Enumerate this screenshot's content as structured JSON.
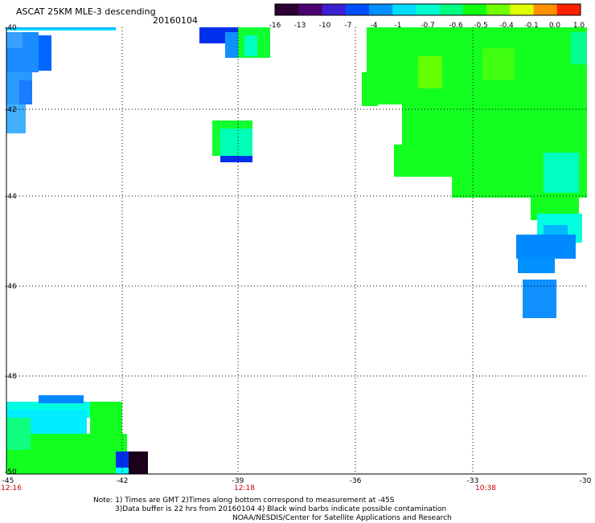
{
  "header": {
    "title": "ASCAT 25KM MLE-3 descending",
    "date": "20160104"
  },
  "colorbar": {
    "labels": [
      "-16",
      "-13",
      "-10",
      "-7",
      "-4",
      "-1",
      "-0.7",
      "-0.6",
      "-0.5",
      "-0.4",
      "-0.1",
      "0.0",
      "1.0"
    ],
    "colors": [
      "#2a0030",
      "#4b0070",
      "#3c1fd0",
      "#0050ff",
      "#0090ff",
      "#00ddff",
      "#00ffd0",
      "#00ff80",
      "#10ff10",
      "#70ff00",
      "#e0ff00",
      "#ff9000",
      "#ff2000"
    ]
  },
  "axes": {
    "x_ticks": [
      "-45",
      "-42",
      "-39",
      "-36",
      "-33",
      "-30"
    ],
    "y_ticks": [
      "-40",
      "-42",
      "-44",
      "-46",
      "-48",
      "-50"
    ],
    "time_labels": [
      "12:16",
      "12:18",
      "10:38"
    ]
  },
  "notes": [
    "Note: 1) Times are GMT 2)Times along bottom correspond to measurement at -45S",
    "3)Data buffer is 22 hrs from 20160104 4) Black wind barbs indicate possible contamination",
    "NOAA/NESDIS/Center for Satellite Applications and Research"
  ]
}
